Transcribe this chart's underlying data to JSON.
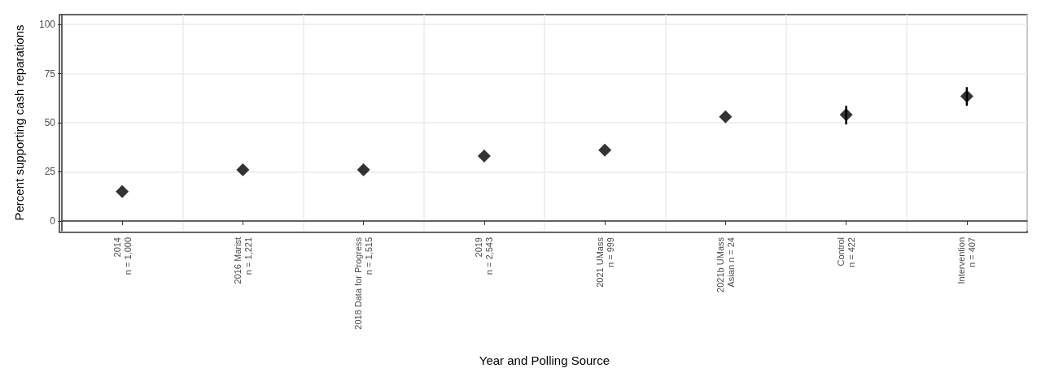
{
  "chart_data": {
    "type": "scatter",
    "xlabel": "Year and Polling Source",
    "ylabel": "Percent supporting cash reparations",
    "categories": [
      "2014\nn = 1,000",
      "2016 Marist\nn = 1,221",
      "2018 Data for Progress\nn = 1,515",
      "2019\nn = 2,543",
      "2021 UMass\nn = 999",
      "2021b UMass\nAsian n = 24",
      "Control\nn = 422",
      "Intervention\nn = 407"
    ],
    "series": [
      {
        "color": "#000000",
        "values": [
          15,
          26,
          26,
          33,
          36,
          53,
          54,
          63.4
        ],
        "errors": [
          null,
          null,
          null,
          null,
          null,
          null,
          [
            49.1,
            58.6
          ],
          [
            58.6,
            68.1
          ]
        ]
      }
    ],
    "ylim": [
      -5,
      105
    ],
    "yticks": [
      0,
      25,
      50,
      75,
      100
    ],
    "grid": true,
    "marker": "diamond"
  }
}
